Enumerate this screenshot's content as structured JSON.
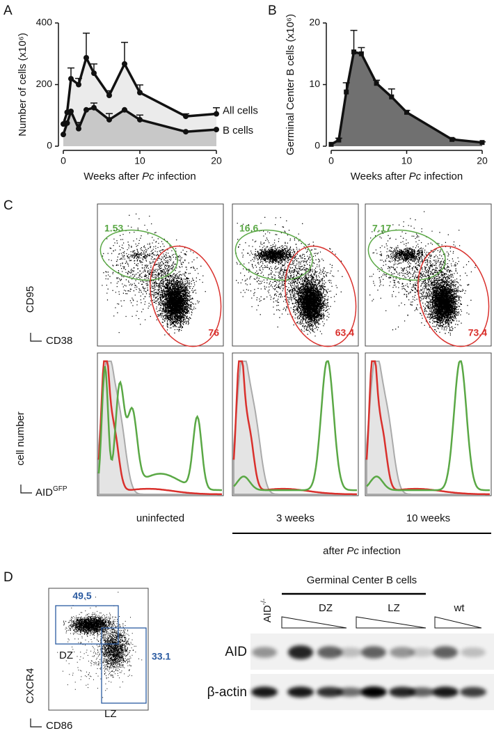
{
  "chart_data": [
    {
      "type": "line",
      "panel_label": "A",
      "marker": "circle",
      "x": [
        0,
        0.5,
        1,
        2,
        3,
        4,
        6,
        8,
        10,
        16,
        20
      ],
      "series": [
        {
          "name": "All cells",
          "color": "#ebebeb",
          "values": [
            72,
            110,
            219,
            200,
            287,
            237,
            165,
            267,
            174,
            97,
            105
          ],
          "errors": [
            null,
            null,
            35,
            20,
            80,
            30,
            15,
            70,
            25,
            8,
            20
          ]
        },
        {
          "name": "B cells",
          "color": "#c8c8c8",
          "values": [
            38,
            75,
            113,
            57,
            118,
            125,
            86,
            118,
            86,
            47,
            54
          ],
          "errors": [
            null,
            null,
            null,
            20,
            null,
            15,
            20,
            null,
            15,
            null,
            null
          ]
        }
      ],
      "xlabel": [
        "Weeks after ",
        "Pc",
        " infection"
      ],
      "ylabel": "Number of cells (x10⁶)",
      "xlim": [
        0,
        20
      ],
      "ylim": [
        0,
        400
      ],
      "xticks": [
        0,
        10,
        20
      ],
      "yticks": [
        0,
        200,
        400
      ]
    },
    {
      "type": "line",
      "panel_label": "B",
      "marker": "square",
      "x": [
        0,
        1,
        2,
        3,
        4,
        6,
        8,
        10,
        16,
        20
      ],
      "series": [
        {
          "name": "Germinal Center B cells",
          "color": "#707070",
          "values": [
            0.3,
            1.0,
            8.8,
            15.3,
            15.0,
            10.2,
            8.0,
            5.5,
            1.1,
            0.6
          ],
          "errors": [
            null,
            0.3,
            1.5,
            3.5,
            1.0,
            0.5,
            1.3,
            0.3,
            0.2,
            0.1
          ]
        }
      ],
      "xlabel": [
        "Weeks after ",
        "Pc",
        " infection"
      ],
      "ylabel": "Germinal Center B cells (x10⁶)",
      "xlim": [
        0,
        20
      ],
      "ylim": [
        0,
        20
      ],
      "xticks": [
        0,
        10,
        20
      ],
      "yticks": [
        0,
        10,
        20
      ]
    }
  ],
  "panel_c": {
    "label": "C",
    "scatter_y": "CD95",
    "scatter_x": "CD38",
    "hist_y": "cell number",
    "hist_x": [
      "AID",
      "GFP"
    ],
    "gates_green": [
      1.53,
      16.6,
      7.17
    ],
    "gates_red": [
      76,
      63.4,
      73.4
    ],
    "conditions": [
      "uninfected",
      "3 weeks",
      "10 weeks"
    ],
    "footer": [
      "after ",
      "Pc",
      " infection"
    ]
  },
  "panel_d": {
    "label": "D",
    "dz_pct": 49.5,
    "lz_pct": 33.1,
    "dz": "DZ",
    "lz": "LZ",
    "y": "CXCR4",
    "x": "CD86",
    "blot": {
      "title": "Germinal Center B cells",
      "groups": [
        "DZ",
        "LZ",
        "wt"
      ],
      "knockout": [
        "AID",
        "-/-"
      ],
      "rows": [
        "AID",
        "β-actin"
      ]
    }
  }
}
